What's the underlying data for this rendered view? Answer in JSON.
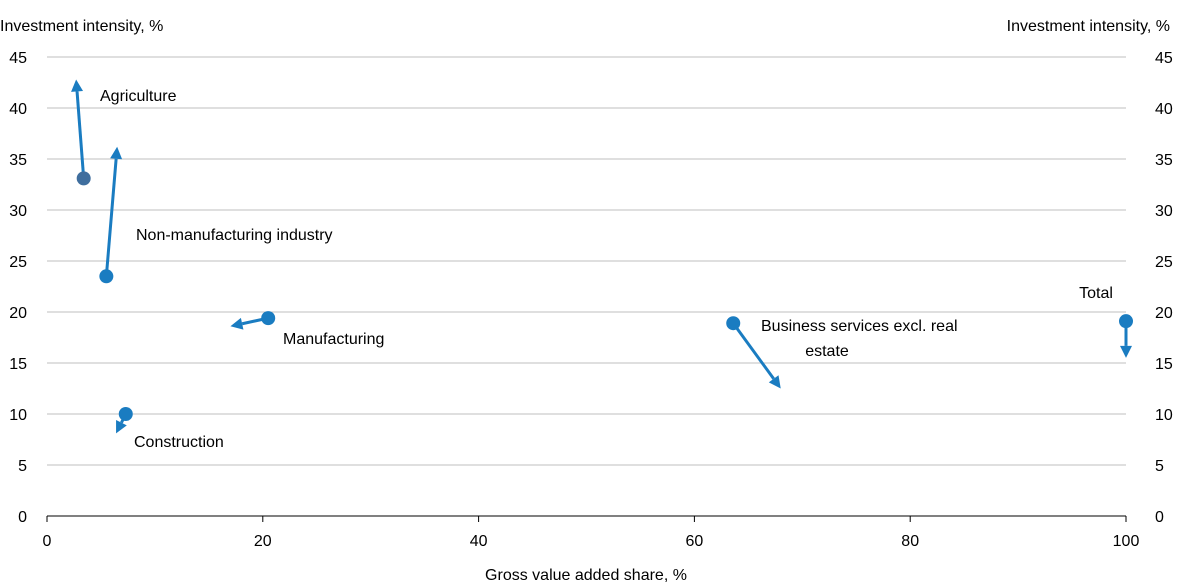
{
  "chart_data": {
    "type": "scatter",
    "xlabel": "Gross value added share, %",
    "ylabel_left": "Investment intensity, %",
    "ylabel_right": "Investment intensity, %",
    "xlim": [
      0,
      100
    ],
    "ylim": [
      0,
      45
    ],
    "x_ticks": [
      0,
      20,
      40,
      60,
      80,
      100
    ],
    "y_ticks": [
      0,
      5,
      10,
      15,
      20,
      25,
      30,
      35,
      40,
      45
    ],
    "grid": "horizontal",
    "colors": {
      "marker": "#1a7cc1",
      "agriculture_marker": "#3f6e9e",
      "grid": "#bfbfbf"
    },
    "points": [
      {
        "name": "Agriculture",
        "x": 3.4,
        "y": 33.1,
        "x_to": 2.7,
        "y_to": 42.8
      },
      {
        "name": "Non-manufacturing industry",
        "x": 5.5,
        "y": 23.5,
        "x_to": 6.5,
        "y_to": 36.2
      },
      {
        "name": "Manufacturing",
        "x": 20.5,
        "y": 19.4,
        "x_to": 17.0,
        "y_to": 18.6
      },
      {
        "name": "Construction",
        "x": 7.3,
        "y": 10.0,
        "x_to": 6.4,
        "y_to": 8.1
      },
      {
        "name": "Business services excl. real estate",
        "x": 63.6,
        "y": 18.9,
        "x_to": 68.0,
        "y_to": 12.5
      },
      {
        "name": "Total",
        "x": 100.0,
        "y": 19.1,
        "x_to": 100.0,
        "y_to": 15.5
      }
    ],
    "annotations": {
      "agriculture": "Agriculture",
      "non_manufacturing": "Non-manufacturing industry",
      "manufacturing": "Manufacturing",
      "construction": "Construction",
      "business_line1": "Business services excl. real",
      "business_line2": "estate",
      "total": "Total"
    }
  }
}
